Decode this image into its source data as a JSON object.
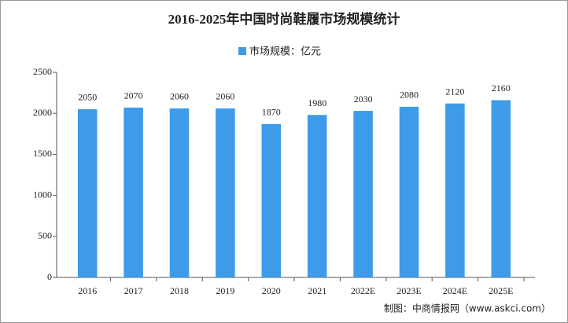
{
  "chart_data": {
    "type": "bar",
    "title": "2016-2025年中国时尚鞋履市场规模统计",
    "legend": "市场规模：亿元",
    "categories": [
      "2016",
      "2017",
      "2018",
      "2019",
      "2020",
      "2021",
      "2022E",
      "2023E",
      "2024E",
      "2025E"
    ],
    "values": [
      2050,
      2070,
      2060,
      2060,
      1870,
      1980,
      2030,
      2080,
      2120,
      2160
    ],
    "color": "#3d9be9",
    "ylim": [
      0,
      2500
    ],
    "yticks": [
      0,
      500,
      1000,
      1500,
      2000,
      2500
    ],
    "grid": false,
    "source": "制图：中商情报网（www.askci.com）"
  }
}
